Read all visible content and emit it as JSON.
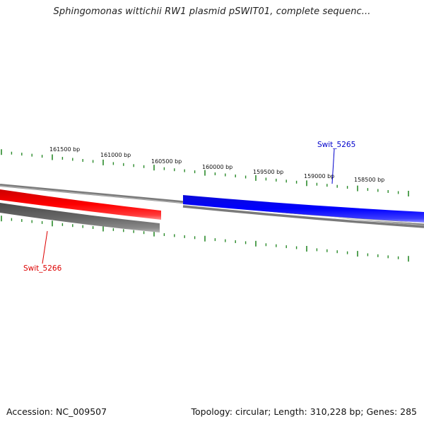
{
  "title": "Sphingomonas wittichii RW1 plasmid pSWIT01, complete sequenc...",
  "footer": {
    "accession": "Accession: NC_009507",
    "summary": "Topology: circular; Length: 310,228 bp; Genes: 285"
  },
  "colors": {
    "tick": "#2a8a2a",
    "backbone": "#8c8c8c",
    "forward_gene": "#0000ee",
    "reverse_gene": "#ee1111",
    "reverse_gene_2": "#6a6a6a"
  },
  "ticks": [
    {
      "label": "161500 bp"
    },
    {
      "label": "161000 bp"
    },
    {
      "label": "160500 bp"
    },
    {
      "label": "160000 bp"
    },
    {
      "label": "159500 bp"
    },
    {
      "label": "159000 bp"
    },
    {
      "label": "158500 bp"
    }
  ],
  "genes": [
    {
      "name": "Swit_5265",
      "strand": "forward",
      "color": "#0000cc"
    },
    {
      "name": "Swit_5266",
      "strand": "reverse",
      "color": "#dd0000"
    }
  ]
}
